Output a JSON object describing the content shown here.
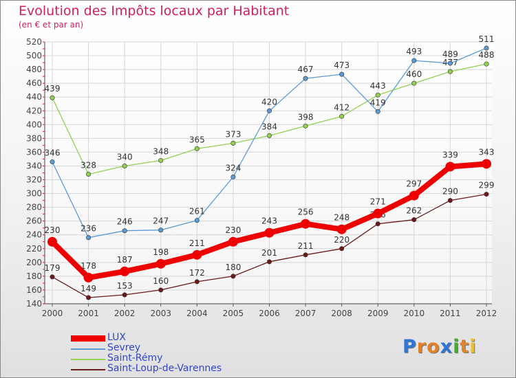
{
  "logo_text": "Proxiti",
  "colors": {
    "title": "#d21e5a",
    "lux": "#ee0000",
    "sevrey": "#5b9bd5",
    "saint_remy": "#92d050",
    "saint_loup": "#6b1a1a"
  },
  "chart_data": {
    "type": "line",
    "title": "Evolution des Impôts locaux par Habitant",
    "subtitle": "(en € et par an)",
    "x": [
      "2000",
      "2001",
      "2002",
      "2003",
      "2004",
      "2005",
      "2006",
      "2007",
      "2008",
      "2009",
      "2010",
      "2011",
      "2012"
    ],
    "ylim": [
      140,
      520
    ],
    "yticks": [
      140,
      160,
      180,
      200,
      220,
      240,
      260,
      280,
      300,
      320,
      340,
      360,
      380,
      400,
      420,
      440,
      460,
      480,
      500,
      520
    ],
    "grid": true,
    "legend_position": "bottom-left",
    "series": [
      {
        "name": "LUX",
        "key": "lux",
        "values": [
          230,
          178,
          187,
          198,
          211,
          230,
          243,
          256,
          248,
          271,
          297,
          339,
          343
        ]
      },
      {
        "name": "Sevrey",
        "key": "sevrey",
        "values": [
          346,
          236,
          246,
          247,
          261,
          324,
          420,
          467,
          473,
          419,
          493,
          489,
          511
        ]
      },
      {
        "name": "Saint-Rémy",
        "key": "saint_remy",
        "values": [
          439,
          328,
          340,
          348,
          365,
          373,
          384,
          398,
          412,
          443,
          460,
          477,
          488
        ]
      },
      {
        "name": "Saint-Loup-de-Varennes",
        "key": "saint_loup",
        "values": [
          179,
          149,
          153,
          160,
          172,
          180,
          201,
          211,
          220,
          256,
          262,
          290,
          299
        ]
      }
    ]
  }
}
